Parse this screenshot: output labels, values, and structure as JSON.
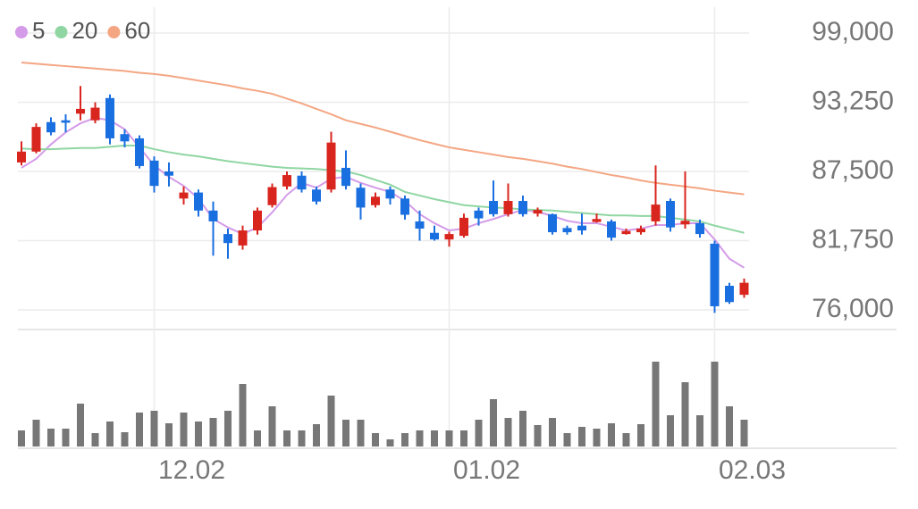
{
  "chart_data": {
    "type": "candlestick",
    "categories": [
      null,
      null,
      null,
      null,
      null,
      null,
      null,
      null,
      null,
      "12.02",
      null,
      null,
      null,
      null,
      null,
      null,
      null,
      null,
      null,
      null,
      null,
      null,
      null,
      null,
      null,
      null,
      null,
      null,
      null,
      "01.02",
      null,
      null,
      null,
      null,
      null,
      null,
      null,
      null,
      null,
      null,
      null,
      null,
      null,
      null,
      null,
      null,
      null,
      "02.03",
      null,
      null
    ],
    "open": [
      88250,
      89150,
      91600,
      91750,
      92300,
      91750,
      93600,
      90600,
      90250,
      88400,
      87500,
      85250,
      85750,
      84250,
      82300,
      81350,
      82600,
      84700,
      86250,
      87150,
      86000,
      86000,
      87800,
      86150,
      84700,
      86000,
      85250,
      83350,
      82400,
      81850,
      82150,
      84250,
      85050,
      83950,
      85050,
      84000,
      83950,
      82800,
      83000,
      83300,
      83350,
      82300,
      82450,
      83350,
      85050,
      83100,
      83200,
      81500,
      78000,
      77250
    ],
    "high": [
      90000,
      91500,
      92000,
      92250,
      94600,
      93250,
      93900,
      91000,
      90500,
      88750,
      88250,
      86250,
      86000,
      85000,
      82750,
      83000,
      84500,
      86500,
      87500,
      87500,
      86250,
      90800,
      89250,
      86500,
      85750,
      86250,
      85500,
      84250,
      83000,
      82500,
      84000,
      84500,
      86750,
      86500,
      85500,
      84500,
      84000,
      83000,
      84000,
      84000,
      83500,
      82750,
      83000,
      88000,
      85250,
      87500,
      83500,
      81750,
      78250,
      78600
    ],
    "low": [
      88000,
      89000,
      90500,
      90750,
      91750,
      91500,
      89750,
      89500,
      87750,
      85750,
      86250,
      84750,
      83750,
      80500,
      80250,
      81000,
      82250,
      84500,
      86000,
      85750,
      84750,
      85750,
      86000,
      83500,
      84500,
      84750,
      83500,
      81750,
      81750,
      81250,
      82000,
      83000,
      83750,
      83750,
      83750,
      83750,
      82250,
      82250,
      82250,
      83250,
      81750,
      82250,
      82250,
      83000,
      82500,
      82750,
      82000,
      75750,
      76500,
      77000
    ],
    "close": [
      89150,
      91200,
      90750,
      91550,
      92700,
      92800,
      90250,
      90000,
      87950,
      86300,
      87150,
      85750,
      84250,
      83350,
      81550,
      82600,
      84250,
      86200,
      87200,
      86000,
      85000,
      89900,
      86300,
      84500,
      85400,
      85250,
      83900,
      82750,
      81850,
      82300,
      83650,
      83600,
      83950,
      85050,
      83950,
      84300,
      82450,
      82450,
      82600,
      83550,
      82000,
      82550,
      82750,
      84750,
      82850,
      83400,
      82300,
      76300,
      76650,
      78250
    ],
    "up_color": "#d8261e",
    "down_color": "#1a6fe0",
    "series": [
      {
        "name": "5",
        "color": "#d49be8",
        "values": [
          87800,
          88550,
          89750,
          90750,
          91500,
          91950,
          91750,
          91000,
          89500,
          88000,
          87050,
          86300,
          85250,
          83550,
          82850,
          82300,
          82850,
          84100,
          85550,
          86550,
          86150,
          86900,
          87050,
          86550,
          86150,
          85800,
          85050,
          83950,
          83200,
          82600,
          82750,
          83200,
          83550,
          83950,
          84300,
          84150,
          83800,
          83400,
          83200,
          83200,
          82900,
          82600,
          82750,
          83050,
          83050,
          83200,
          83200,
          81850,
          80250,
          79500
        ]
      },
      {
        "name": "20",
        "color": "#8fd6a2",
        "values": [
          89400,
          89350,
          89350,
          89400,
          89450,
          89450,
          89550,
          89650,
          89650,
          89350,
          89100,
          88900,
          88750,
          88550,
          88350,
          88200,
          88050,
          87900,
          87800,
          87750,
          87700,
          87600,
          87500,
          87200,
          86800,
          86400,
          85800,
          85500,
          85200,
          84950,
          84700,
          84600,
          84500,
          84450,
          84350,
          84300,
          84250,
          84150,
          84050,
          83950,
          83850,
          83850,
          83800,
          83800,
          83650,
          83500,
          83350,
          83000,
          82700,
          82400
        ]
      },
      {
        "name": "60",
        "color": "#f4a683",
        "values": [
          96550,
          96450,
          96350,
          96250,
          96150,
          96050,
          95950,
          95850,
          95700,
          95600,
          95450,
          95250,
          95050,
          94850,
          94650,
          94400,
          94200,
          93950,
          93550,
          93150,
          92700,
          92250,
          91750,
          91450,
          91150,
          90800,
          90450,
          90100,
          89800,
          89500,
          89300,
          89100,
          88900,
          88700,
          88550,
          88350,
          88150,
          87900,
          87700,
          87450,
          87200,
          87000,
          86750,
          86550,
          86400,
          86250,
          86100,
          85900,
          85750,
          85600
        ]
      }
    ],
    "volume": {
      "color": "#777777",
      "ylim": [
        0,
        100
      ],
      "values": [
        18,
        30,
        20,
        20,
        48,
        15,
        28,
        16,
        38,
        40,
        26,
        38,
        28,
        32,
        40,
        70,
        18,
        45,
        18,
        18,
        25,
        57,
        30,
        30,
        15,
        8,
        15,
        18,
        18,
        18,
        18,
        30,
        53,
        32,
        40,
        24,
        32,
        15,
        22,
        20,
        26,
        15,
        25,
        95,
        35,
        72,
        35,
        95,
        45,
        30
      ]
    },
    "ylim": [
      76000,
      99000
    ],
    "yticks": [
      {
        "value": 99000,
        "label": "99,000"
      },
      {
        "value": 93250,
        "label": "93,250"
      },
      {
        "value": 87500,
        "label": "87,500"
      },
      {
        "value": 81750,
        "label": "81,750"
      },
      {
        "value": 76000,
        "label": "76,000"
      }
    ],
    "grid": true
  }
}
